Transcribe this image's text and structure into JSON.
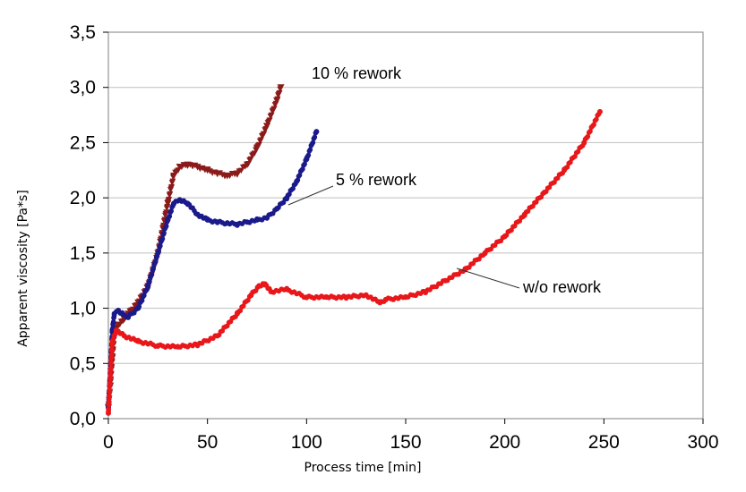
{
  "chart_data": {
    "type": "scatter",
    "xlabel": "Process time [min]",
    "ylabel": "Apparent viscosity  [Pa*s]",
    "xlim": [
      0,
      300
    ],
    "ylim": [
      0,
      3.5
    ],
    "xticks": [
      "0",
      "50",
      "100",
      "150",
      "200",
      "250",
      "300"
    ],
    "yticks": [
      "0,0",
      "0,5",
      "1,0",
      "1,5",
      "2,0",
      "2,5",
      "3,0",
      "3,5"
    ],
    "grid": "horizontal",
    "legend": "none",
    "annotations": [
      {
        "text": "10 % rework",
        "series": 0
      },
      {
        "text": "5 % rework",
        "series": 1
      },
      {
        "text": "w/o rework",
        "series": 2
      }
    ],
    "series": [
      {
        "name": "10 % rework",
        "color": "#8b1a1a",
        "marker": "triangle-down",
        "x": [
          0,
          1,
          2,
          3,
          5,
          8,
          10,
          15,
          20,
          25,
          30,
          33,
          36,
          40,
          45,
          50,
          55,
          60,
          65,
          70,
          75,
          80,
          85,
          87
        ],
        "y": [
          0.1,
          0.3,
          0.55,
          0.75,
          0.85,
          0.9,
          0.95,
          1.05,
          1.2,
          1.5,
          1.95,
          2.2,
          2.28,
          2.3,
          2.28,
          2.25,
          2.22,
          2.2,
          2.22,
          2.3,
          2.45,
          2.65,
          2.88,
          3.0
        ]
      },
      {
        "name": "5 % rework",
        "color": "#1a1a8b",
        "marker": "circle",
        "x": [
          0,
          1,
          2,
          3,
          5,
          7,
          10,
          15,
          20,
          25,
          30,
          33,
          36,
          40,
          45,
          50,
          55,
          60,
          65,
          70,
          75,
          80,
          85,
          90,
          95,
          100,
          105
        ],
        "y": [
          0.1,
          0.45,
          0.8,
          0.95,
          0.98,
          0.95,
          0.92,
          1.0,
          1.2,
          1.5,
          1.8,
          1.95,
          1.98,
          1.95,
          1.85,
          1.8,
          1.78,
          1.77,
          1.76,
          1.78,
          1.8,
          1.82,
          1.9,
          2.0,
          2.15,
          2.35,
          2.6
        ]
      },
      {
        "name": "w/o rework",
        "color": "#e8171a",
        "marker": "circle",
        "x": [
          0,
          1,
          2,
          4,
          8,
          15,
          25,
          35,
          45,
          55,
          65,
          72,
          76,
          79,
          82,
          90,
          100,
          110,
          120,
          130,
          137,
          140,
          150,
          160,
          170,
          180,
          190,
          200,
          210,
          220,
          230,
          240,
          248
        ],
        "y": [
          0.05,
          0.4,
          0.7,
          0.8,
          0.75,
          0.7,
          0.66,
          0.65,
          0.67,
          0.75,
          0.95,
          1.12,
          1.2,
          1.22,
          1.15,
          1.17,
          1.1,
          1.1,
          1.1,
          1.12,
          1.05,
          1.08,
          1.1,
          1.15,
          1.25,
          1.35,
          1.5,
          1.65,
          1.85,
          2.05,
          2.25,
          2.5,
          2.78
        ]
      }
    ]
  }
}
